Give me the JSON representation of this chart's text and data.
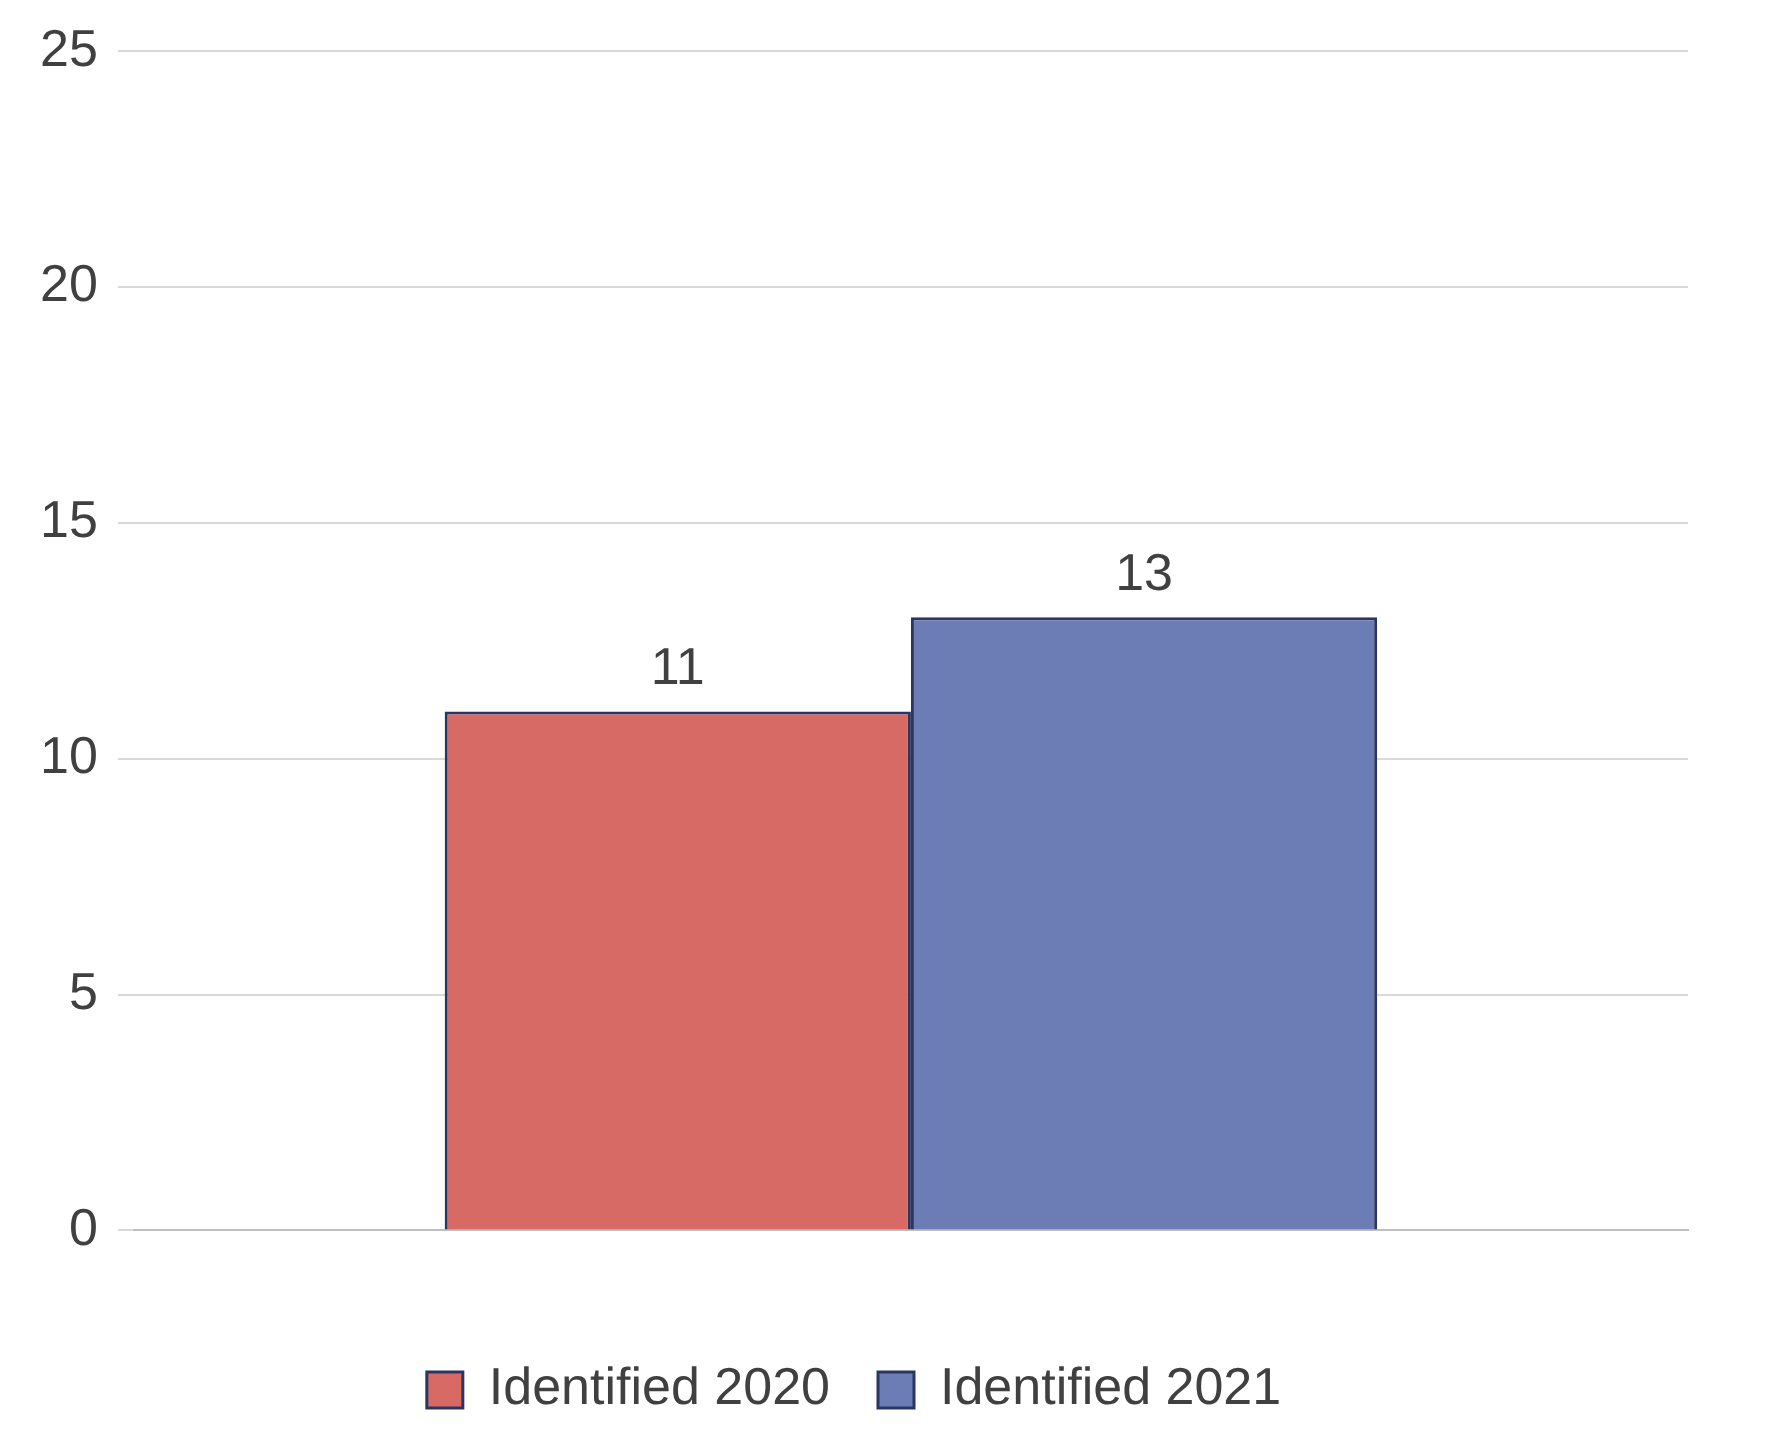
{
  "chart_data": {
    "type": "bar",
    "categories": [
      null
    ],
    "series": [
      {
        "name": "Identified 2020",
        "color": "#d86a66",
        "values": [
          11
        ]
      },
      {
        "name": "Identified 2021",
        "color": "#6c7db6",
        "values": [
          13
        ]
      }
    ],
    "ylim": [
      0,
      25
    ],
    "yticks": [
      0,
      5,
      10,
      15,
      20,
      25
    ],
    "grid": "y",
    "legend": "bottom",
    "data_labels": true
  }
}
